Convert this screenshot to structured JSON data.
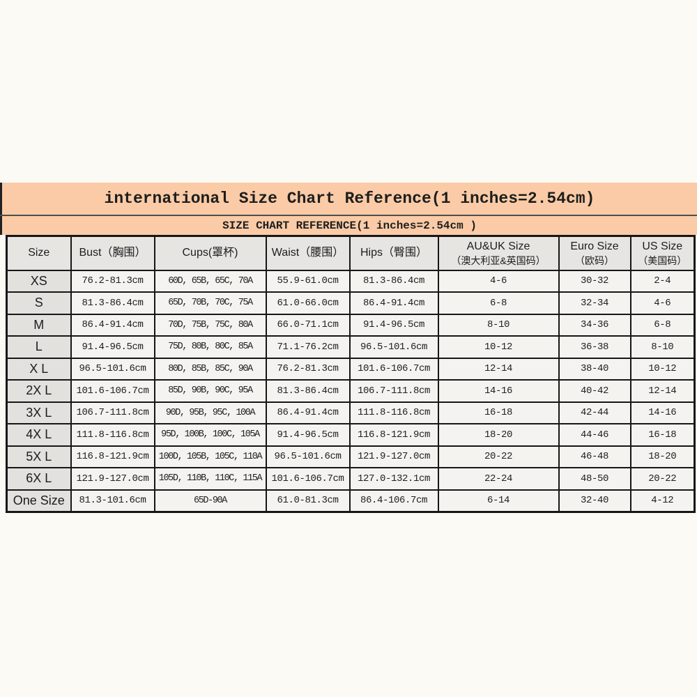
{
  "banner": {
    "title": "international Size Chart Reference(1 inches=2.54cm)"
  },
  "sub_banner": {
    "title": "SIZE CHART REFERENCE(1 inches=2.54cm )"
  },
  "colors": {
    "banner_bg": "#facba6",
    "page_bg": "#fcfaf5",
    "header_bg": "#e6e5e2",
    "row_label_bg": "#e2e1de",
    "cell_bg": "#f4f3f0",
    "table_border": "#161616"
  },
  "chart_data": {
    "type": "table",
    "title": "international Size Chart Reference(1 inches=2.54cm)",
    "subtitle": "SIZE CHART REFERENCE(1 inches=2.54cm )",
    "columns": [
      {
        "main": "Size",
        "sub": ""
      },
      {
        "main": "Bust（胸围）",
        "sub": ""
      },
      {
        "main": "Cups(罩杯)",
        "sub": ""
      },
      {
        "main": "Waist（腰围）",
        "sub": ""
      },
      {
        "main": "Hips（臀围）",
        "sub": ""
      },
      {
        "main": "AU&UK Size",
        "sub": "（澳大利亚&英国码）"
      },
      {
        "main": "Euro Size",
        "sub": "（欧码）"
      },
      {
        "main": "US Size",
        "sub": "（美国码）"
      }
    ],
    "rows": [
      [
        "XS",
        "76.2-81.3cm",
        "60D, 65B, 65C, 70A",
        "55.9-61.0cm",
        "81.3-86.4cm",
        "4-6",
        "30-32",
        "2-4"
      ],
      [
        "S",
        "81.3-86.4cm",
        "65D, 70B, 70C, 75A",
        "61.0-66.0cm",
        "86.4-91.4cm",
        "6-8",
        "32-34",
        "4-6"
      ],
      [
        "M",
        "86.4-91.4cm",
        "70D, 75B, 75C, 80A",
        "66.0-71.1cm",
        "91.4-96.5cm",
        "8-10",
        "34-36",
        "6-8"
      ],
      [
        "L",
        "91.4-96.5cm",
        "75D, 80B, 80C, 85A",
        "71.1-76.2cm",
        "96.5-101.6cm",
        "10-12",
        "36-38",
        "8-10"
      ],
      [
        "X L",
        "96.5-101.6cm",
        "80D, 85B, 85C, 90A",
        "76.2-81.3cm",
        "101.6-106.7cm",
        "12-14",
        "38-40",
        "10-12"
      ],
      [
        "2X L",
        "101.6-106.7cm",
        "85D, 90B, 90C, 95A",
        "81.3-86.4cm",
        "106.7-111.8cm",
        "14-16",
        "40-42",
        "12-14"
      ],
      [
        "3X L",
        "106.7-111.8cm",
        "90D, 95B, 95C, 100A",
        "86.4-91.4cm",
        "111.8-116.8cm",
        "16-18",
        "42-44",
        "14-16"
      ],
      [
        "4X L",
        "111.8-116.8cm",
        "95D, 100B, 100C, 105A",
        "91.4-96.5cm",
        "116.8-121.9cm",
        "18-20",
        "44-46",
        "16-18"
      ],
      [
        "5X L",
        "116.8-121.9cm",
        "100D, 105B, 105C, 110A",
        "96.5-101.6cm",
        "121.9-127.0cm",
        "20-22",
        "46-48",
        "18-20"
      ],
      [
        "6X L",
        "121.9-127.0cm",
        "105D, 110B, 110C, 115A",
        "101.6-106.7cm",
        "127.0-132.1cm",
        "22-24",
        "48-50",
        "20-22"
      ],
      [
        "One Size",
        "81.3-101.6cm",
        "65D-90A",
        "61.0-81.3cm",
        "86.4-106.7cm",
        "6-14",
        "32-40",
        "4-12"
      ]
    ]
  }
}
